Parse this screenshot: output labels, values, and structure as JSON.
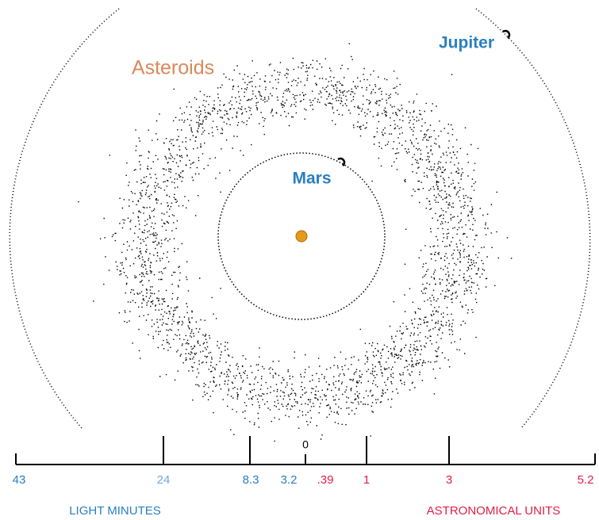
{
  "labels": {
    "asteroids": "Asteroids",
    "jupiter": "Jupiter",
    "mars": "Mars"
  },
  "scale": {
    "zero": "0",
    "light_minutes": {
      "title": "LIGHT MINUTES",
      "ticks": [
        "43",
        "24",
        "8.3",
        "3.2"
      ]
    },
    "astronomical_units": {
      "title": "ASTRONOMICAL UNITS",
      "ticks": [
        ".39",
        "1",
        "3",
        "5.2"
      ]
    }
  }
}
